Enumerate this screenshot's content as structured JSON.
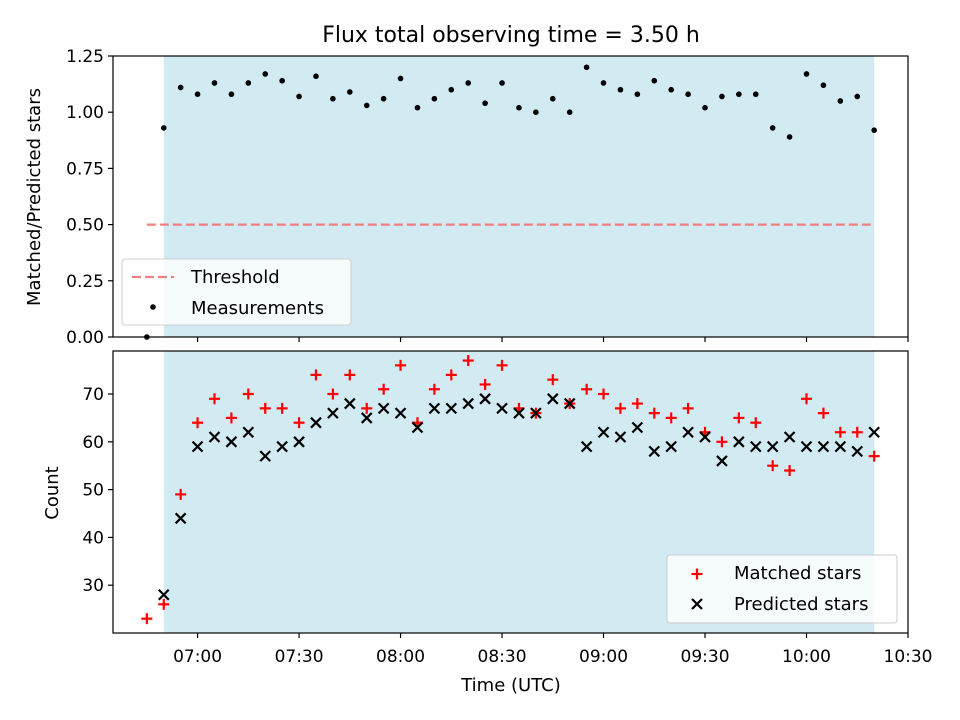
{
  "figure_title": "Flux total observing time = 3.50 h",
  "colors": {
    "shade": "#add8e6",
    "threshold": "#f08080",
    "matched": "#ff0000",
    "predicted": "#000000",
    "measurement": "#000000"
  },
  "chart_data": [
    {
      "type": "scatter",
      "ylabel": "Matched/Predicted stars",
      "ylim": [
        0,
        1.25
      ],
      "yticks": [
        0,
        0.25,
        0.5,
        0.75,
        1.0,
        1.25
      ],
      "ytick_labels": [
        "0.00",
        "0.25",
        "0.50",
        "0.75",
        "1.00",
        "1.25"
      ],
      "shaded_span": [
        "06:50",
        "10:20"
      ],
      "legend_position": "lower-left",
      "threshold": {
        "name": "Threshold",
        "value": 0.5,
        "x_start": "06:45",
        "x_end": "10:20"
      },
      "series": [
        {
          "name": "Measurements",
          "points": [
            [
              "06:45",
              0.0
            ],
            [
              "06:50",
              0.93
            ],
            [
              "06:55",
              1.11
            ],
            [
              "07:00",
              1.08
            ],
            [
              "07:05",
              1.13
            ],
            [
              "07:10",
              1.08
            ],
            [
              "07:15",
              1.13
            ],
            [
              "07:20",
              1.17
            ],
            [
              "07:25",
              1.14
            ],
            [
              "07:30",
              1.07
            ],
            [
              "07:35",
              1.16
            ],
            [
              "07:40",
              1.06
            ],
            [
              "07:45",
              1.09
            ],
            [
              "07:50",
              1.03
            ],
            [
              "07:55",
              1.06
            ],
            [
              "08:00",
              1.15
            ],
            [
              "08:05",
              1.02
            ],
            [
              "08:10",
              1.06
            ],
            [
              "08:15",
              1.1
            ],
            [
              "08:20",
              1.13
            ],
            [
              "08:25",
              1.04
            ],
            [
              "08:30",
              1.13
            ],
            [
              "08:35",
              1.02
            ],
            [
              "08:40",
              1.0
            ],
            [
              "08:45",
              1.06
            ],
            [
              "08:50",
              1.0
            ],
            [
              "08:55",
              1.2
            ],
            [
              "09:00",
              1.13
            ],
            [
              "09:05",
              1.1
            ],
            [
              "09:10",
              1.08
            ],
            [
              "09:15",
              1.14
            ],
            [
              "09:20",
              1.1
            ],
            [
              "09:25",
              1.08
            ],
            [
              "09:30",
              1.02
            ],
            [
              "09:35",
              1.07
            ],
            [
              "09:40",
              1.08
            ],
            [
              "09:45",
              1.08
            ],
            [
              "09:50",
              0.93
            ],
            [
              "09:55",
              0.89
            ],
            [
              "10:00",
              1.17
            ],
            [
              "10:05",
              1.12
            ],
            [
              "10:10",
              1.05
            ],
            [
              "10:15",
              1.07
            ],
            [
              "10:20",
              0.92
            ]
          ]
        }
      ]
    },
    {
      "type": "scatter",
      "xlabel": "Time (UTC)",
      "ylabel": "Count",
      "ylim": [
        20,
        79
      ],
      "yticks": [
        30,
        40,
        50,
        60,
        70
      ],
      "xlim": [
        "06:35",
        "10:30"
      ],
      "xticks": [
        "07:00",
        "07:30",
        "08:00",
        "08:30",
        "09:00",
        "09:30",
        "10:00",
        "10:30"
      ],
      "shaded_span": [
        "06:50",
        "10:20"
      ],
      "legend_position": "lower-right",
      "series": [
        {
          "name": "Matched stars",
          "marker": "plus",
          "points": [
            [
              "06:45",
              23
            ],
            [
              "06:50",
              26
            ],
            [
              "06:55",
              49
            ],
            [
              "07:00",
              64
            ],
            [
              "07:05",
              69
            ],
            [
              "07:10",
              65
            ],
            [
              "07:15",
              70
            ],
            [
              "07:20",
              67
            ],
            [
              "07:25",
              67
            ],
            [
              "07:30",
              64
            ],
            [
              "07:35",
              74
            ],
            [
              "07:40",
              70
            ],
            [
              "07:45",
              74
            ],
            [
              "07:50",
              67
            ],
            [
              "07:55",
              71
            ],
            [
              "08:00",
              76
            ],
            [
              "08:05",
              64
            ],
            [
              "08:10",
              71
            ],
            [
              "08:15",
              74
            ],
            [
              "08:20",
              77
            ],
            [
              "08:25",
              72
            ],
            [
              "08:30",
              76
            ],
            [
              "08:35",
              67
            ],
            [
              "08:40",
              66
            ],
            [
              "08:45",
              73
            ],
            [
              "08:50",
              68
            ],
            [
              "08:55",
              71
            ],
            [
              "09:00",
              70
            ],
            [
              "09:05",
              67
            ],
            [
              "09:10",
              68
            ],
            [
              "09:15",
              66
            ],
            [
              "09:20",
              65
            ],
            [
              "09:25",
              67
            ],
            [
              "09:30",
              62
            ],
            [
              "09:35",
              60
            ],
            [
              "09:40",
              65
            ],
            [
              "09:45",
              64
            ],
            [
              "09:50",
              55
            ],
            [
              "09:55",
              54
            ],
            [
              "10:00",
              69
            ],
            [
              "10:05",
              66
            ],
            [
              "10:10",
              62
            ],
            [
              "10:15",
              62
            ],
            [
              "10:20",
              57
            ]
          ]
        },
        {
          "name": "Predicted stars",
          "marker": "x",
          "points": [
            [
              "06:50",
              28
            ],
            [
              "06:55",
              44
            ],
            [
              "07:00",
              59
            ],
            [
              "07:05",
              61
            ],
            [
              "07:10",
              60
            ],
            [
              "07:15",
              62
            ],
            [
              "07:20",
              57
            ],
            [
              "07:25",
              59
            ],
            [
              "07:30",
              60
            ],
            [
              "07:35",
              64
            ],
            [
              "07:40",
              66
            ],
            [
              "07:45",
              68
            ],
            [
              "07:50",
              65
            ],
            [
              "07:55",
              67
            ],
            [
              "08:00",
              66
            ],
            [
              "08:05",
              63
            ],
            [
              "08:10",
              67
            ],
            [
              "08:15",
              67
            ],
            [
              "08:20",
              68
            ],
            [
              "08:25",
              69
            ],
            [
              "08:30",
              67
            ],
            [
              "08:35",
              66
            ],
            [
              "08:40",
              66
            ],
            [
              "08:45",
              69
            ],
            [
              "08:50",
              68
            ],
            [
              "08:55",
              59
            ],
            [
              "09:00",
              62
            ],
            [
              "09:05",
              61
            ],
            [
              "09:10",
              63
            ],
            [
              "09:15",
              58
            ],
            [
              "09:20",
              59
            ],
            [
              "09:25",
              62
            ],
            [
              "09:30",
              61
            ],
            [
              "09:35",
              56
            ],
            [
              "09:40",
              60
            ],
            [
              "09:45",
              59
            ],
            [
              "09:50",
              59
            ],
            [
              "09:55",
              61
            ],
            [
              "10:00",
              59
            ],
            [
              "10:05",
              59
            ],
            [
              "10:10",
              59
            ],
            [
              "10:15",
              58
            ],
            [
              "10:20",
              62
            ]
          ]
        }
      ]
    }
  ]
}
